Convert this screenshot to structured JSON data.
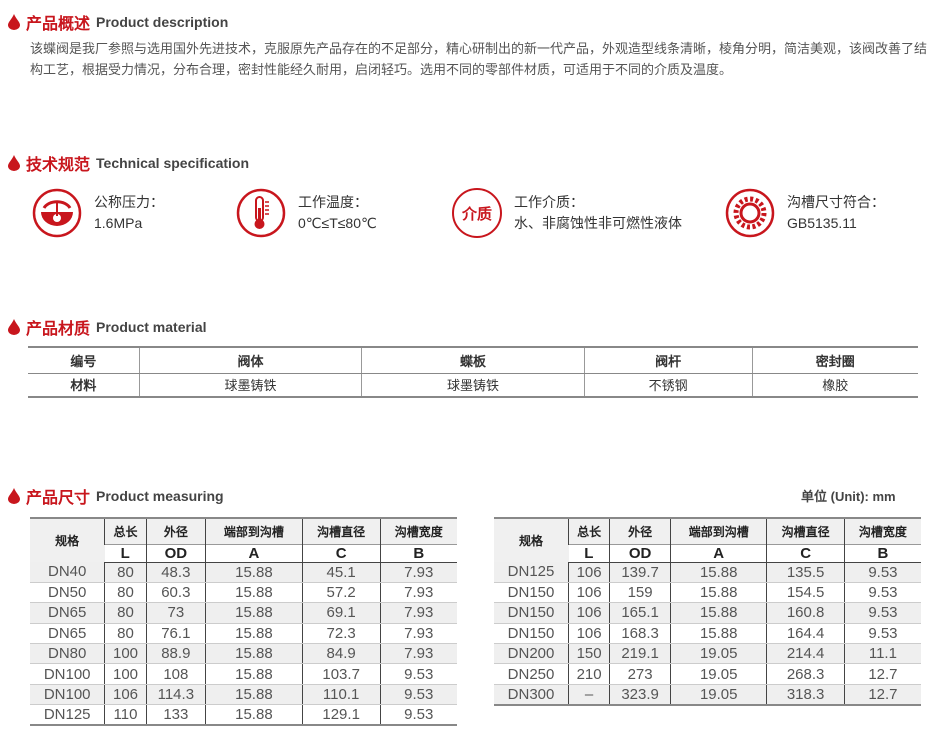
{
  "colors": {
    "accent": "#c8161d"
  },
  "description": {
    "title_zh": "产品概述",
    "title_en": "Product description",
    "text": "该蝶阀是我厂参照与选用国外先进技术，克服原先产品存在的不足部分，精心研制出的新一代产品，外观造型线条清晰，棱角分明，简洁美观，该阀改善了结构工艺，根据受力情况，分布合理，密封性能经久耐用，启闭轻巧。选用不同的零部件材质，可适用于不同的介质及温度。"
  },
  "spec": {
    "title_zh": "技术规范",
    "title_en": "Technical specification",
    "items": [
      {
        "icon": "pressure-gauge-icon",
        "label": "公称压力：",
        "value": "1.6MPa"
      },
      {
        "icon": "thermometer-icon",
        "label": "工作温度：",
        "value": "0℃≤T≤80℃"
      },
      {
        "icon": "medium-icon",
        "icon_text": "介质",
        "label": "工作介质：",
        "value": "水、非腐蚀性非可燃性液体"
      },
      {
        "icon": "gear-icon",
        "label": "沟槽尺寸符合：",
        "value": "GB5135.11"
      }
    ]
  },
  "material": {
    "title_zh": "产品材质",
    "title_en": "Product material",
    "header": [
      "编号",
      "阀体",
      "蝶板",
      "阀杆",
      "密封圈"
    ],
    "row": [
      "材料",
      "球墨铸铁",
      "球墨铸铁",
      "不锈钢",
      "橡胶"
    ]
  },
  "measuring": {
    "title_zh": "产品尺寸",
    "title_en": "Product measuring",
    "unit": "单位 (Unit): mm",
    "headers": [
      "规格",
      "总长",
      "外径",
      "端部到沟槽",
      "沟槽直径",
      "沟槽宽度"
    ],
    "symbols": [
      "L",
      "OD",
      "A",
      "C",
      "B"
    ],
    "table1": [
      [
        "DN40",
        "80",
        "48.3",
        "15.88",
        "45.1",
        "7.93"
      ],
      [
        "DN50",
        "80",
        "60.3",
        "15.88",
        "57.2",
        "7.93"
      ],
      [
        "DN65",
        "80",
        "73",
        "15.88",
        "69.1",
        "7.93"
      ],
      [
        "DN65",
        "80",
        "76.1",
        "15.88",
        "72.3",
        "7.93"
      ],
      [
        "DN80",
        "100",
        "88.9",
        "15.88",
        "84.9",
        "7.93"
      ],
      [
        "DN100",
        "100",
        "108",
        "15.88",
        "103.7",
        "9.53"
      ],
      [
        "DN100",
        "106",
        "114.3",
        "15.88",
        "110.1",
        "9.53"
      ],
      [
        "DN125",
        "110",
        "133",
        "15.88",
        "129.1",
        "9.53"
      ]
    ],
    "table2": [
      [
        "DN125",
        "106",
        "139.7",
        "15.88",
        "135.5",
        "9.53"
      ],
      [
        "DN150",
        "106",
        "159",
        "15.88",
        "154.5",
        "9.53"
      ],
      [
        "DN150",
        "106",
        "165.1",
        "15.88",
        "160.8",
        "9.53"
      ],
      [
        "DN150",
        "106",
        "168.3",
        "15.88",
        "164.4",
        "9.53"
      ],
      [
        "DN200",
        "150",
        "219.1",
        "19.05",
        "214.4",
        "11.1"
      ],
      [
        "DN250",
        "210",
        "273",
        "19.05",
        "268.3",
        "12.7"
      ],
      [
        "DN300",
        "–",
        "323.9",
        "19.05",
        "318.3",
        "12.7"
      ]
    ]
  }
}
